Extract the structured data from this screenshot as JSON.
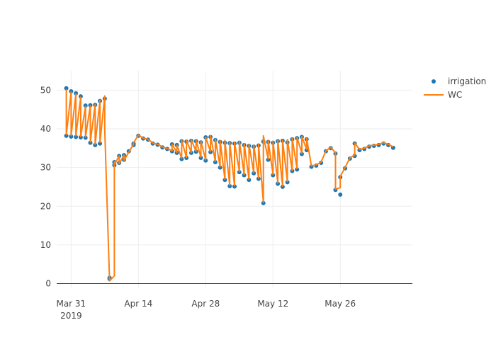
{
  "chart_data": {
    "type": "scatter",
    "title": "",
    "xlabel": "",
    "ylabel": "",
    "xlim": [
      "2019-03-28",
      "2019-06-10"
    ],
    "ylim": [
      -1,
      55
    ],
    "grid": true,
    "legend_position": "top-right",
    "x_ticks": [
      {
        "date": "2019-03-31",
        "label": "Mar 31",
        "sublabel": "2019"
      },
      {
        "date": "2019-04-14",
        "label": "Apr 14",
        "sublabel": ""
      },
      {
        "date": "2019-04-28",
        "label": "Apr 28",
        "sublabel": ""
      },
      {
        "date": "2019-05-12",
        "label": "May 12",
        "sublabel": ""
      },
      {
        "date": "2019-05-26",
        "label": "May 26",
        "sublabel": ""
      }
    ],
    "y_ticks": [
      0,
      10,
      20,
      30,
      40,
      50
    ],
    "series": [
      {
        "name": "irrigation",
        "mode": "markers",
        "color": "#1f77b4",
        "x": [
          "2019-03-30",
          "2019-03-30",
          "2019-03-31",
          "2019-03-31",
          "2019-04-01",
          "2019-04-01",
          "2019-04-02",
          "2019-04-02",
          "2019-04-03",
          "2019-04-03",
          "2019-04-04",
          "2019-04-04",
          "2019-04-05",
          "2019-04-05",
          "2019-04-06",
          "2019-04-06",
          "2019-04-07",
          "2019-04-08",
          "2019-04-08",
          "2019-04-09",
          "2019-04-09",
          "2019-04-10",
          "2019-04-10",
          "2019-04-11",
          "2019-04-11",
          "2019-04-12",
          "2019-04-13",
          "2019-04-13",
          "2019-04-14",
          "2019-04-15",
          "2019-04-16",
          "2019-04-17",
          "2019-04-18",
          "2019-04-19",
          "2019-04-20",
          "2019-04-21",
          "2019-04-21",
          "2019-04-22",
          "2019-04-22",
          "2019-04-23",
          "2019-04-23",
          "2019-04-24",
          "2019-04-24",
          "2019-04-25",
          "2019-04-25",
          "2019-04-26",
          "2019-04-26",
          "2019-04-27",
          "2019-04-27",
          "2019-04-28",
          "2019-04-28",
          "2019-04-29",
          "2019-04-29",
          "2019-04-30",
          "2019-04-30",
          "2019-05-01",
          "2019-05-01",
          "2019-05-02",
          "2019-05-02",
          "2019-05-03",
          "2019-05-03",
          "2019-05-04",
          "2019-05-04",
          "2019-05-05",
          "2019-05-05",
          "2019-05-06",
          "2019-05-06",
          "2019-05-07",
          "2019-05-07",
          "2019-05-08",
          "2019-05-08",
          "2019-05-09",
          "2019-05-09",
          "2019-05-10",
          "2019-05-10",
          "2019-05-11",
          "2019-05-11",
          "2019-05-12",
          "2019-05-12",
          "2019-05-13",
          "2019-05-13",
          "2019-05-14",
          "2019-05-14",
          "2019-05-15",
          "2019-05-15",
          "2019-05-16",
          "2019-05-16",
          "2019-05-17",
          "2019-05-17",
          "2019-05-18",
          "2019-05-18",
          "2019-05-19",
          "2019-05-19",
          "2019-05-20",
          "2019-05-21",
          "2019-05-22",
          "2019-05-23",
          "2019-05-24",
          "2019-05-25",
          "2019-05-25",
          "2019-05-26",
          "2019-05-26",
          "2019-05-27",
          "2019-05-28",
          "2019-05-29",
          "2019-05-29",
          "2019-05-30",
          "2019-05-31",
          "2019-06-01",
          "2019-06-02",
          "2019-06-03",
          "2019-06-04",
          "2019-06-05",
          "2019-06-06"
        ],
        "y": [
          50.5,
          38.2,
          49.7,
          38.0,
          49.2,
          37.9,
          48.4,
          37.8,
          46.0,
          37.7,
          46.1,
          36.4,
          46.2,
          35.8,
          47.2,
          36.2,
          47.8,
          1.2,
          1.5,
          31.4,
          30.6,
          33.0,
          31.2,
          33.2,
          32.0,
          34.2,
          35.8,
          36.2,
          38.2,
          37.5,
          37.2,
          36.2,
          35.9,
          35.2,
          34.8,
          34.2,
          36.0,
          33.8,
          35.8,
          32.2,
          36.8,
          32.5,
          36.7,
          33.8,
          36.9,
          34.1,
          36.8,
          32.5,
          36.5,
          31.8,
          37.8,
          34.0,
          37.9,
          31.4,
          37.1,
          30.0,
          36.6,
          26.8,
          36.4,
          25.2,
          36.3,
          25.1,
          36.2,
          28.8,
          36.4,
          28.0,
          35.8,
          26.8,
          35.6,
          28.5,
          35.4,
          27.1,
          35.7,
          20.8,
          36.7,
          32.0,
          36.6,
          28.0,
          36.4,
          25.8,
          36.8,
          25.0,
          36.9,
          26.2,
          36.5,
          29.1,
          37.3,
          29.5,
          37.6,
          33.5,
          37.9,
          34.5,
          37.3,
          30.2,
          30.5,
          31.2,
          34.2,
          35.0,
          33.6,
          24.2,
          23.0,
          27.5,
          29.8,
          32.3,
          33.0,
          36.2,
          34.5,
          34.8,
          35.4,
          35.6,
          35.8,
          36.2,
          35.8,
          35.1
        ]
      },
      {
        "name": "WC",
        "mode": "lines",
        "color": "#ff7f0e",
        "x": [
          "2019-03-30",
          "2019-03-30",
          "2019-03-31",
          "2019-03-31",
          "2019-04-01",
          "2019-04-01",
          "2019-04-02",
          "2019-04-02",
          "2019-04-03",
          "2019-04-03",
          "2019-04-04",
          "2019-04-04",
          "2019-04-05",
          "2019-04-05",
          "2019-04-06",
          "2019-04-06",
          "2019-04-07",
          "2019-04-07",
          "2019-04-08",
          "2019-04-08",
          "2019-04-09",
          "2019-04-09",
          "2019-04-09",
          "2019-04-10",
          "2019-04-10",
          "2019-04-11",
          "2019-04-11",
          "2019-04-12",
          "2019-04-13",
          "2019-04-13",
          "2019-04-14",
          "2019-04-15",
          "2019-04-16",
          "2019-04-17",
          "2019-04-18",
          "2019-04-19",
          "2019-04-20",
          "2019-04-21",
          "2019-04-21",
          "2019-04-22",
          "2019-04-22",
          "2019-04-23",
          "2019-04-23",
          "2019-04-24",
          "2019-04-24",
          "2019-04-25",
          "2019-04-25",
          "2019-04-26",
          "2019-04-26",
          "2019-04-27",
          "2019-04-27",
          "2019-04-28",
          "2019-04-28",
          "2019-04-29",
          "2019-04-29",
          "2019-04-30",
          "2019-04-30",
          "2019-05-01",
          "2019-05-01",
          "2019-05-02",
          "2019-05-02",
          "2019-05-03",
          "2019-05-03",
          "2019-05-04",
          "2019-05-04",
          "2019-05-05",
          "2019-05-05",
          "2019-05-06",
          "2019-05-06",
          "2019-05-07",
          "2019-05-07",
          "2019-05-08",
          "2019-05-08",
          "2019-05-09",
          "2019-05-09",
          "2019-05-10",
          "2019-05-10",
          "2019-05-11",
          "2019-05-11",
          "2019-05-12",
          "2019-05-12",
          "2019-05-13",
          "2019-05-13",
          "2019-05-14",
          "2019-05-14",
          "2019-05-15",
          "2019-05-15",
          "2019-05-16",
          "2019-05-16",
          "2019-05-17",
          "2019-05-17",
          "2019-05-18",
          "2019-05-18",
          "2019-05-19",
          "2019-05-19",
          "2019-05-20",
          "2019-05-21",
          "2019-05-22",
          "2019-05-23",
          "2019-05-24",
          "2019-05-25",
          "2019-05-25",
          "2019-05-26",
          "2019-05-26",
          "2019-05-27",
          "2019-05-28",
          "2019-05-29",
          "2019-05-29",
          "2019-05-30",
          "2019-05-31",
          "2019-06-01",
          "2019-06-02",
          "2019-06-03",
          "2019-06-04",
          "2019-06-05",
          "2019-06-06"
        ],
        "y": [
          50.2,
          38.5,
          49.5,
          38.3,
          49.0,
          38.2,
          48.2,
          38.0,
          45.8,
          37.9,
          46.0,
          36.6,
          46.3,
          36.0,
          47.4,
          36.5,
          48.5,
          40.0,
          0.8,
          0.7,
          2.0,
          31.5,
          30.8,
          33.0,
          31.0,
          33.2,
          31.8,
          34.0,
          36.0,
          36.4,
          38.4,
          37.6,
          37.3,
          36.3,
          36.0,
          35.3,
          34.9,
          34.3,
          36.0,
          33.9,
          35.8,
          32.4,
          37.0,
          32.6,
          37.1,
          33.9,
          37.2,
          34.2,
          37.0,
          32.7,
          36.8,
          32.0,
          37.8,
          34.1,
          38.2,
          31.6,
          37.4,
          30.2,
          37.0,
          27.0,
          37.0,
          25.4,
          36.6,
          25.3,
          36.5,
          29.0,
          36.8,
          28.2,
          36.2,
          27.0,
          36.0,
          28.7,
          35.8,
          27.3,
          36.0,
          21.0,
          38.2,
          32.2,
          36.9,
          28.2,
          36.8,
          26.0,
          37.0,
          25.2,
          37.0,
          26.4,
          37.2,
          29.2,
          37.6,
          29.7,
          37.8,
          33.7,
          38.0,
          34.7,
          37.5,
          30.4,
          30.7,
          31.4,
          34.3,
          35.2,
          33.8,
          24.4,
          24.8,
          27.7,
          30.0,
          32.5,
          33.2,
          36.3,
          34.7,
          35.0,
          35.6,
          35.8,
          36.0,
          36.4,
          36.0,
          35.3
        ]
      }
    ]
  }
}
